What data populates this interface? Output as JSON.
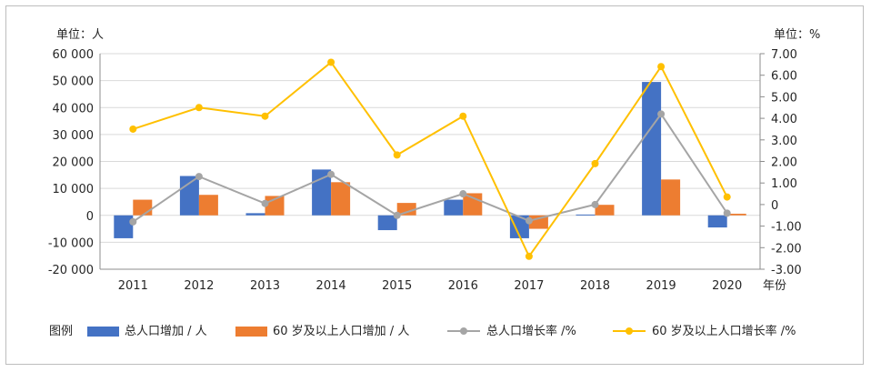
{
  "chart_data": {
    "type": "bar+line",
    "categories": [
      "2011",
      "2012",
      "2013",
      "2014",
      "2015",
      "2016",
      "2017",
      "2018",
      "2019",
      "2020"
    ],
    "x_unit": "年份",
    "y_left": {
      "unit_label": "单位：人",
      "range": [
        -20000,
        60000
      ],
      "ticks": [
        "-20 000",
        "-10 000",
        "0",
        "10 000",
        "20 000",
        "30 000",
        "40 000",
        "50 000",
        "60 000"
      ]
    },
    "y_right": {
      "unit_label": "单位：%",
      "range": [
        -3,
        7
      ],
      "ticks": [
        "-3.00",
        "-2.00",
        "-1.00",
        "0",
        "1.00",
        "2.00",
        "3.00",
        "4.00",
        "5.00",
        "6.00",
        "7.00"
      ]
    },
    "legend_prefix": "图例",
    "series": [
      {
        "name": "总人口增加 / 人",
        "kind": "bar",
        "axis": "left",
        "color": "#4472c4",
        "values": [
          -8500,
          14600,
          800,
          17000,
          -5500,
          5800,
          -8500,
          300,
          49500,
          -4500
        ]
      },
      {
        "name": "60 岁及以上人口增加 / 人",
        "kind": "bar",
        "axis": "left",
        "color": "#ed7d31",
        "values": [
          5800,
          7600,
          7200,
          12300,
          4600,
          8200,
          -5000,
          3900,
          13300,
          600
        ]
      },
      {
        "name": "总人口增长率 /%",
        "kind": "line",
        "axis": "right",
        "color": "#a5a5a5",
        "values": [
          -0.8,
          1.3,
          0.05,
          1.4,
          -0.5,
          0.5,
          -0.75,
          0.0,
          4.2,
          -0.4
        ]
      },
      {
        "name": "60 岁及以上人口增长率 /%",
        "kind": "line",
        "axis": "right",
        "color": "#ffc000",
        "values": [
          3.5,
          4.5,
          4.1,
          6.6,
          2.3,
          4.1,
          -2.4,
          1.9,
          6.4,
          0.35
        ]
      }
    ],
    "grid": true,
    "legend_position": "bottom-left"
  }
}
